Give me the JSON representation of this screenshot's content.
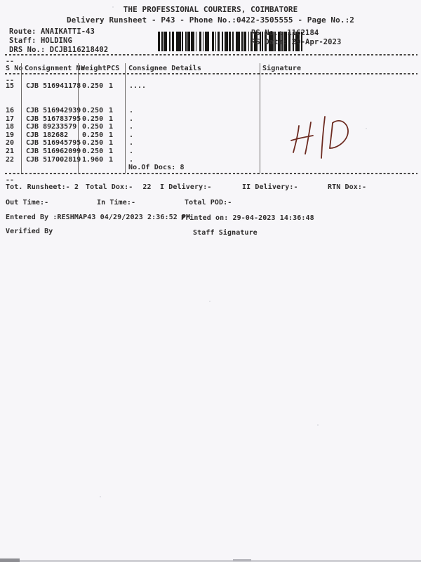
{
  "header": {
    "company": "THE PROFESSIONAL COURIERS, COIMBATORE",
    "runsheet_line": "Delivery Runsheet - P43 - Phone No.:0422-3505555 - Page No.:2",
    "route_label": "Route:",
    "route_value": "ANAIKATTI-43",
    "staff_label": "Staff:",
    "staff_value": "HOLDING",
    "drs_label": "DRS No.:",
    "drs_value": "DCJB116218402",
    "rs_no_label": "RS No.:",
    "rs_no_value": "1162184",
    "rs_date_label": "RS Date:",
    "rs_date_value": "29-Apr-2023",
    "barcode_pattern": [
      2,
      1,
      1,
      1,
      3,
      2,
      1,
      1,
      2,
      2,
      4,
      1,
      1,
      2,
      1,
      1,
      2,
      1,
      3,
      1,
      1,
      2,
      2,
      1,
      1,
      1,
      4,
      2,
      2,
      1,
      1,
      1,
      2,
      2,
      1,
      1,
      3,
      1,
      2,
      1,
      1,
      2,
      4,
      1,
      1,
      1,
      2,
      2,
      1,
      1,
      2,
      1,
      3,
      2,
      1,
      1,
      1,
      1,
      2,
      2,
      4,
      1,
      1,
      2,
      2,
      1,
      1,
      1,
      3,
      1,
      2,
      2,
      1,
      1,
      4,
      1,
      1,
      2
    ]
  },
  "table": {
    "headers": {
      "s_no": "S No",
      "consignment": "Consignment No",
      "weight": "Weight",
      "pcs": "PCS",
      "consignee": "Consignee Details",
      "signature": "Signature"
    },
    "rows": [
      {
        "s_no": "15",
        "consignment_no": "CJB 516941178",
        "weight": "0.250",
        "pcs": "1",
        "consignee": "...."
      },
      {
        "s_no": "16",
        "consignment_no": "CJB 516942939",
        "weight": "0.250",
        "pcs": "1",
        "consignee": "."
      },
      {
        "s_no": "17",
        "consignment_no": "CJB 516783795",
        "weight": "0.250",
        "pcs": "1",
        "consignee": "."
      },
      {
        "s_no": "18",
        "consignment_no": "CJB 89233579",
        "weight": "0.250",
        "pcs": "1",
        "consignee": "."
      },
      {
        "s_no": "19",
        "consignment_no": "CJB 182682",
        "weight": "0.250",
        "pcs": "1",
        "consignee": "."
      },
      {
        "s_no": "20",
        "consignment_no": "CJB 516945795",
        "weight": "0.250",
        "pcs": "1",
        "consignee": "."
      },
      {
        "s_no": "21",
        "consignment_no": "CJB 516962099",
        "weight": "0.250",
        "pcs": "1",
        "consignee": "."
      },
      {
        "s_no": "22",
        "consignment_no": "CJB 517002819",
        "weight": "1.960",
        "pcs": "1",
        "consignee": "."
      }
    ],
    "no_of_docs": "No.Of Docs: 8"
  },
  "annotation": {
    "text": "H|D",
    "color": "#6d2b21"
  },
  "summary": {
    "tot_runsheet_label": "Tot. Runsheet:-",
    "tot_runsheet_value": "2",
    "total_dox_label": "Total Dox:-",
    "total_dox_value": "22",
    "i_delivery": "I Delivery:-",
    "ii_delivery": "II Delivery:-",
    "rtn_dox": "RTN Dox:-",
    "out_time": "Out Time:-",
    "in_time": "In Time:-",
    "total_pod": "Total POD:-",
    "entered_by": "Entered By :RESHMAP43 04/29/2023 2:36:52 PM",
    "printed_on": "Printed on: 29-04-2023 14:36:48",
    "verified_by": "Verified By",
    "staff_signature": "Staff Signature"
  },
  "misc": {
    "dash_continuation": "--"
  }
}
